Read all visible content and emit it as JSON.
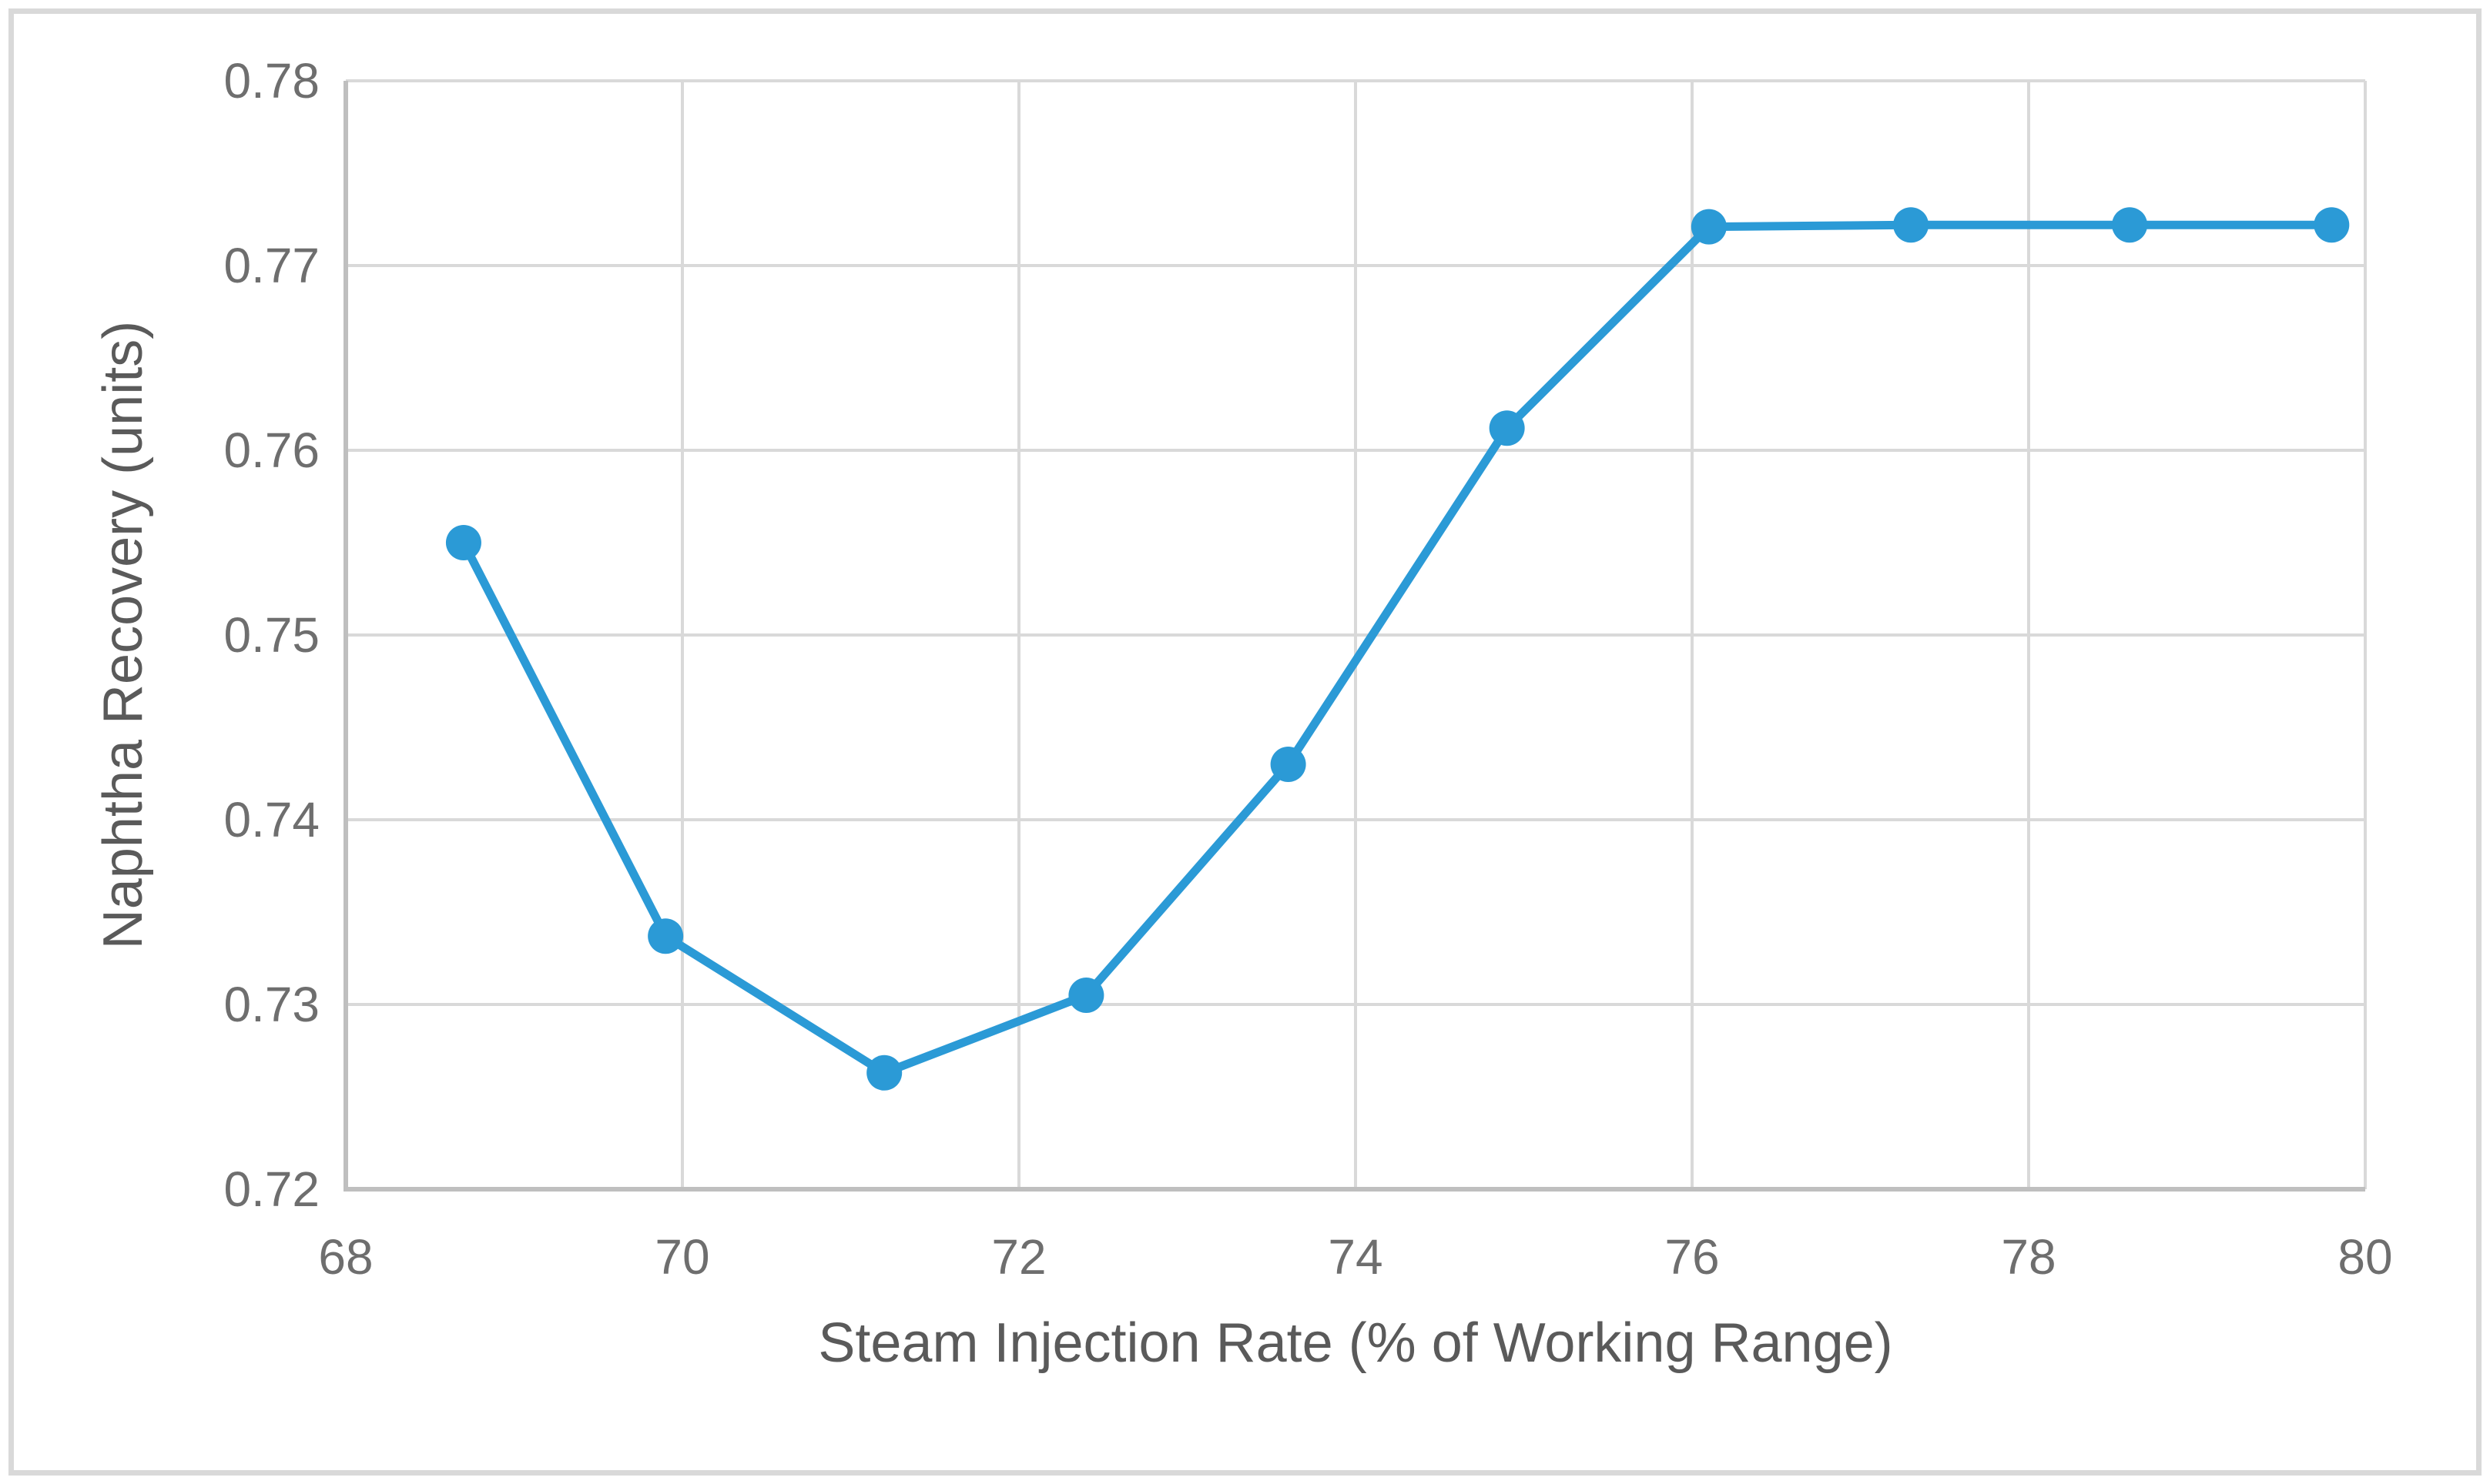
{
  "chart_data": {
    "type": "line",
    "title": "",
    "xlabel": "Steam Injection Rate (% of Working Range)",
    "ylabel": "Naphtha Recovery (units)",
    "series": [
      {
        "name": "Naphtha Recovery",
        "x": [
          68.7,
          69.9,
          71.2,
          72.4,
          73.6,
          74.9,
          76.1,
          77.3,
          78.6,
          79.8
        ],
        "y": [
          0.755,
          0.7337,
          0.7263,
          0.7305,
          0.743,
          0.7612,
          0.7721,
          0.7722,
          0.7722,
          0.7722
        ]
      }
    ],
    "xlim": [
      68,
      80
    ],
    "ylim": [
      0.72,
      0.78
    ],
    "xticks": {
      "values": [
        68,
        70,
        72,
        74,
        76,
        78,
        80
      ],
      "labels": [
        "68",
        "70",
        "72",
        "74",
        "76",
        "78",
        "80"
      ]
    },
    "yticks": {
      "values": [
        0.72,
        0.73,
        0.74,
        0.75,
        0.76,
        0.77,
        0.78
      ],
      "labels": [
        "0.72",
        "0.73",
        "0.74",
        "0.75",
        "0.76",
        "0.77",
        "0.78"
      ]
    },
    "grid": true,
    "legend_position": "none",
    "marker": "circle"
  },
  "style": {
    "line_color": "#2B9AD6",
    "marker_color": "#2B9AD6",
    "grid_color": "#D9D9D9",
    "axis_line_color": "#BFBFBF",
    "outer_border_color": "#D9D9D9",
    "tick_text_color": "#6E6E6E",
    "title_text_color": "#5A5A5A",
    "background": "#ffffff"
  }
}
